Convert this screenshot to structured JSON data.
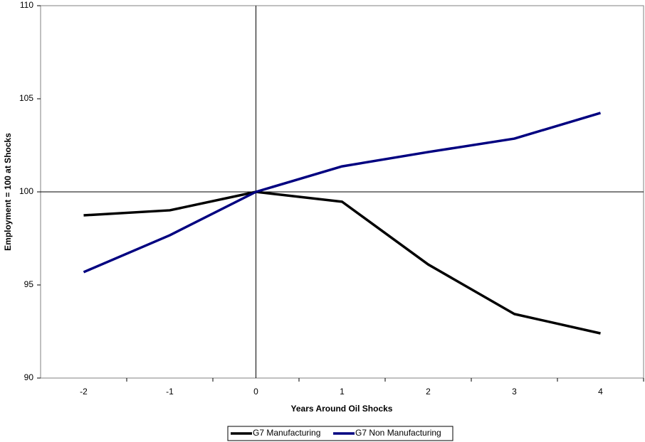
{
  "chart_data": {
    "type": "line",
    "x_label": "Years Around Oil Shocks",
    "y_label": "Employment = 100 at Shocks",
    "x": [
      -2,
      -1,
      0,
      1,
      2,
      3,
      4
    ],
    "series": [
      {
        "name": "G7 Manufacturing",
        "color": "#000000",
        "values": [
          98.74,
          99.01,
          100,
          99.47,
          96.1,
          93.44,
          92.4
        ]
      },
      {
        "name": "G7 Non Manufacturing",
        "color": "#000080",
        "values": [
          95.69,
          97.67,
          100,
          101.37,
          102.14,
          102.86,
          104.24
        ]
      }
    ],
    "xlim": [
      -2.5,
      4.5
    ],
    "xticks": [
      -2,
      -1,
      0,
      1,
      2,
      3,
      4
    ],
    "ylim": [
      90,
      110
    ],
    "yticks": [
      90,
      95,
      100,
      105,
      110
    ],
    "reference_lines": {
      "x": 0,
      "y": 100
    },
    "legend": "bottom"
  }
}
